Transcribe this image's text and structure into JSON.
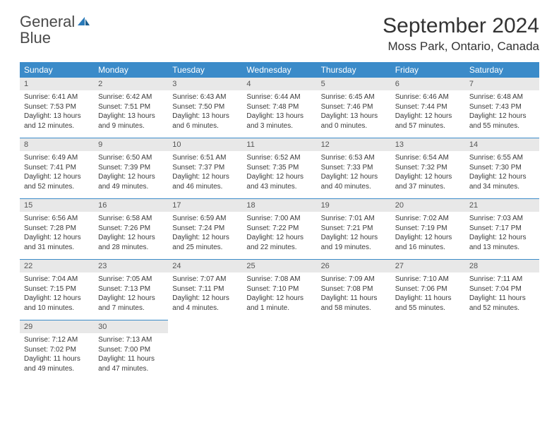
{
  "logo": {
    "word1": "General",
    "word2": "Blue"
  },
  "title": "September 2024",
  "location": "Moss Park, Ontario, Canada",
  "colors": {
    "header_bg": "#3b8bc9",
    "header_text": "#ffffff",
    "daynum_bg": "#e8e8e8",
    "border": "#3b8bc9",
    "logo_blue": "#2a7ab9",
    "text": "#3a3a3a"
  },
  "day_headers": [
    "Sunday",
    "Monday",
    "Tuesday",
    "Wednesday",
    "Thursday",
    "Friday",
    "Saturday"
  ],
  "weeks": [
    {
      "nums": [
        "1",
        "2",
        "3",
        "4",
        "5",
        "6",
        "7"
      ],
      "cells": [
        {
          "sr": "Sunrise: 6:41 AM",
          "ss": "Sunset: 7:53 PM",
          "d1": "Daylight: 13 hours",
          "d2": "and 12 minutes."
        },
        {
          "sr": "Sunrise: 6:42 AM",
          "ss": "Sunset: 7:51 PM",
          "d1": "Daylight: 13 hours",
          "d2": "and 9 minutes."
        },
        {
          "sr": "Sunrise: 6:43 AM",
          "ss": "Sunset: 7:50 PM",
          "d1": "Daylight: 13 hours",
          "d2": "and 6 minutes."
        },
        {
          "sr": "Sunrise: 6:44 AM",
          "ss": "Sunset: 7:48 PM",
          "d1": "Daylight: 13 hours",
          "d2": "and 3 minutes."
        },
        {
          "sr": "Sunrise: 6:45 AM",
          "ss": "Sunset: 7:46 PM",
          "d1": "Daylight: 13 hours",
          "d2": "and 0 minutes."
        },
        {
          "sr": "Sunrise: 6:46 AM",
          "ss": "Sunset: 7:44 PM",
          "d1": "Daylight: 12 hours",
          "d2": "and 57 minutes."
        },
        {
          "sr": "Sunrise: 6:48 AM",
          "ss": "Sunset: 7:43 PM",
          "d1": "Daylight: 12 hours",
          "d2": "and 55 minutes."
        }
      ]
    },
    {
      "nums": [
        "8",
        "9",
        "10",
        "11",
        "12",
        "13",
        "14"
      ],
      "cells": [
        {
          "sr": "Sunrise: 6:49 AM",
          "ss": "Sunset: 7:41 PM",
          "d1": "Daylight: 12 hours",
          "d2": "and 52 minutes."
        },
        {
          "sr": "Sunrise: 6:50 AM",
          "ss": "Sunset: 7:39 PM",
          "d1": "Daylight: 12 hours",
          "d2": "and 49 minutes."
        },
        {
          "sr": "Sunrise: 6:51 AM",
          "ss": "Sunset: 7:37 PM",
          "d1": "Daylight: 12 hours",
          "d2": "and 46 minutes."
        },
        {
          "sr": "Sunrise: 6:52 AM",
          "ss": "Sunset: 7:35 PM",
          "d1": "Daylight: 12 hours",
          "d2": "and 43 minutes."
        },
        {
          "sr": "Sunrise: 6:53 AM",
          "ss": "Sunset: 7:33 PM",
          "d1": "Daylight: 12 hours",
          "d2": "and 40 minutes."
        },
        {
          "sr": "Sunrise: 6:54 AM",
          "ss": "Sunset: 7:32 PM",
          "d1": "Daylight: 12 hours",
          "d2": "and 37 minutes."
        },
        {
          "sr": "Sunrise: 6:55 AM",
          "ss": "Sunset: 7:30 PM",
          "d1": "Daylight: 12 hours",
          "d2": "and 34 minutes."
        }
      ]
    },
    {
      "nums": [
        "15",
        "16",
        "17",
        "18",
        "19",
        "20",
        "21"
      ],
      "cells": [
        {
          "sr": "Sunrise: 6:56 AM",
          "ss": "Sunset: 7:28 PM",
          "d1": "Daylight: 12 hours",
          "d2": "and 31 minutes."
        },
        {
          "sr": "Sunrise: 6:58 AM",
          "ss": "Sunset: 7:26 PM",
          "d1": "Daylight: 12 hours",
          "d2": "and 28 minutes."
        },
        {
          "sr": "Sunrise: 6:59 AM",
          "ss": "Sunset: 7:24 PM",
          "d1": "Daylight: 12 hours",
          "d2": "and 25 minutes."
        },
        {
          "sr": "Sunrise: 7:00 AM",
          "ss": "Sunset: 7:22 PM",
          "d1": "Daylight: 12 hours",
          "d2": "and 22 minutes."
        },
        {
          "sr": "Sunrise: 7:01 AM",
          "ss": "Sunset: 7:21 PM",
          "d1": "Daylight: 12 hours",
          "d2": "and 19 minutes."
        },
        {
          "sr": "Sunrise: 7:02 AM",
          "ss": "Sunset: 7:19 PM",
          "d1": "Daylight: 12 hours",
          "d2": "and 16 minutes."
        },
        {
          "sr": "Sunrise: 7:03 AM",
          "ss": "Sunset: 7:17 PM",
          "d1": "Daylight: 12 hours",
          "d2": "and 13 minutes."
        }
      ]
    },
    {
      "nums": [
        "22",
        "23",
        "24",
        "25",
        "26",
        "27",
        "28"
      ],
      "cells": [
        {
          "sr": "Sunrise: 7:04 AM",
          "ss": "Sunset: 7:15 PM",
          "d1": "Daylight: 12 hours",
          "d2": "and 10 minutes."
        },
        {
          "sr": "Sunrise: 7:05 AM",
          "ss": "Sunset: 7:13 PM",
          "d1": "Daylight: 12 hours",
          "d2": "and 7 minutes."
        },
        {
          "sr": "Sunrise: 7:07 AM",
          "ss": "Sunset: 7:11 PM",
          "d1": "Daylight: 12 hours",
          "d2": "and 4 minutes."
        },
        {
          "sr": "Sunrise: 7:08 AM",
          "ss": "Sunset: 7:10 PM",
          "d1": "Daylight: 12 hours",
          "d2": "and 1 minute."
        },
        {
          "sr": "Sunrise: 7:09 AM",
          "ss": "Sunset: 7:08 PM",
          "d1": "Daylight: 11 hours",
          "d2": "and 58 minutes."
        },
        {
          "sr": "Sunrise: 7:10 AM",
          "ss": "Sunset: 7:06 PM",
          "d1": "Daylight: 11 hours",
          "d2": "and 55 minutes."
        },
        {
          "sr": "Sunrise: 7:11 AM",
          "ss": "Sunset: 7:04 PM",
          "d1": "Daylight: 11 hours",
          "d2": "and 52 minutes."
        }
      ]
    },
    {
      "nums": [
        "29",
        "30",
        "",
        "",
        "",
        "",
        ""
      ],
      "cells": [
        {
          "sr": "Sunrise: 7:12 AM",
          "ss": "Sunset: 7:02 PM",
          "d1": "Daylight: 11 hours",
          "d2": "and 49 minutes."
        },
        {
          "sr": "Sunrise: 7:13 AM",
          "ss": "Sunset: 7:00 PM",
          "d1": "Daylight: 11 hours",
          "d2": "and 47 minutes."
        },
        null,
        null,
        null,
        null,
        null
      ]
    }
  ]
}
